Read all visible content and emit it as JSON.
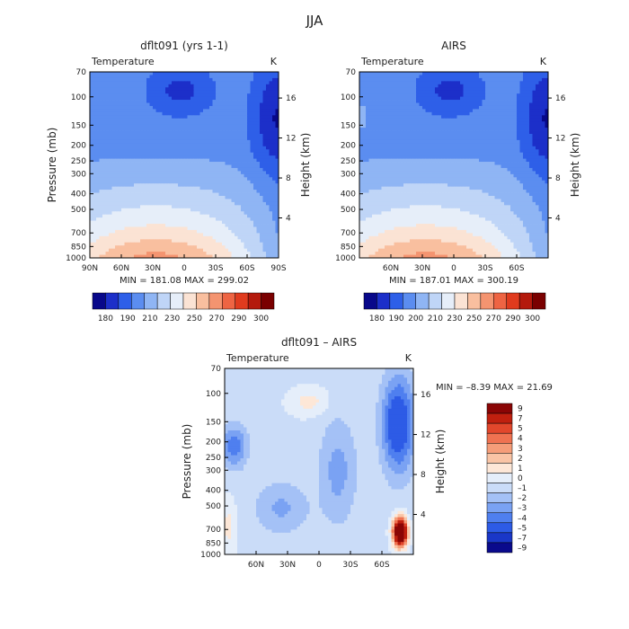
{
  "figure_title": "JJA",
  "chart_data": [
    {
      "type": "heatmap",
      "title": "dflt091 (yrs 1-1)",
      "left_string": "Temperature",
      "right_string": "K",
      "xlabel": "",
      "ylabel": "Pressure (mb)",
      "ylabel_right": "Height (km)",
      "x_ticks": [
        "90N",
        "60N",
        "30N",
        "0",
        "30S",
        "60S",
        "90S"
      ],
      "y_ticks": [
        "70",
        "100",
        "150",
        "200",
        "250",
        "300",
        "400",
        "500",
        "700",
        "850",
        "1000"
      ],
      "y_right_ticks": [
        "4",
        "8",
        "12",
        "16"
      ],
      "stats": "MIN = 181.08   MAX = 299.02",
      "contour_levels": [
        180,
        190,
        200,
        210,
        220,
        230,
        240,
        250,
        260,
        270,
        280,
        290,
        300
      ],
      "colorbar_labels": [
        "180",
        "190",
        "210",
        "230",
        "250",
        "270",
        "290",
        "300"
      ]
    },
    {
      "type": "heatmap",
      "title": "AIRS",
      "left_string": "Temperature",
      "right_string": "K",
      "xlabel": "",
      "ylabel": "",
      "ylabel_right": "Height (km)",
      "x_ticks": [
        "60N",
        "30N",
        "0",
        "30S",
        "60S"
      ],
      "y_ticks": [
        "70",
        "100",
        "150",
        "200",
        "250",
        "300",
        "400",
        "500",
        "700",
        "850",
        "1000"
      ],
      "y_right_ticks": [
        "4",
        "8",
        "12",
        "16"
      ],
      "stats": "MIN = 187.01   MAX = 300.19",
      "contour_levels": [
        180,
        190,
        200,
        210,
        220,
        230,
        240,
        250,
        260,
        270,
        280,
        290,
        300
      ],
      "colorbar_labels": [
        "180",
        "190",
        "200",
        "210",
        "230",
        "250",
        "270",
        "290",
        "300"
      ]
    },
    {
      "type": "heatmap",
      "title": "dflt091 – AIRS",
      "left_string": "Temperature",
      "right_string": "K",
      "xlabel": "",
      "ylabel": "Pressure (mb)",
      "ylabel_right": "Height (km)",
      "x_ticks": [
        "60N",
        "30N",
        "0",
        "30S",
        "60S"
      ],
      "y_ticks": [
        "70",
        "100",
        "150",
        "200",
        "250",
        "300",
        "400",
        "500",
        "700",
        "850",
        "1000"
      ],
      "y_right_ticks": [
        "4",
        "8",
        "12",
        "16"
      ],
      "stats": "MIN =  –8.39   MAX =  21.69",
      "contour_levels": [
        -9,
        -7,
        -5,
        -4,
        -3,
        -2,
        -1,
        0,
        1,
        2,
        3,
        4,
        5,
        7,
        9
      ],
      "colorbar_labels": [
        "9",
        "7",
        "5",
        "4",
        "3",
        "2",
        "1",
        "0",
        "–1",
        "–2",
        "–3",
        "–4",
        "–5",
        "–7",
        "–9"
      ]
    }
  ],
  "colors": {
    "temperature_scale": [
      "#08088a",
      "#1c2fc9",
      "#2e5fe8",
      "#5b8df0",
      "#8fb5f4",
      "#bfd5f7",
      "#e6eef9",
      "#fbe3d4",
      "#f9bf9f",
      "#f49470",
      "#ee6443",
      "#e03b1e",
      "#b41a0d",
      "#7a0000"
    ],
    "difference_scale": [
      "#0a0a8c",
      "#1a37c8",
      "#2d5be6",
      "#4f7fef",
      "#7aa2f3",
      "#a4c1f6",
      "#cadcf8",
      "#e5eefa",
      "#fde7d7",
      "#f9c4a5",
      "#f59d79",
      "#ef7251",
      "#e2472c",
      "#c0200f",
      "#8a0505"
    ]
  }
}
